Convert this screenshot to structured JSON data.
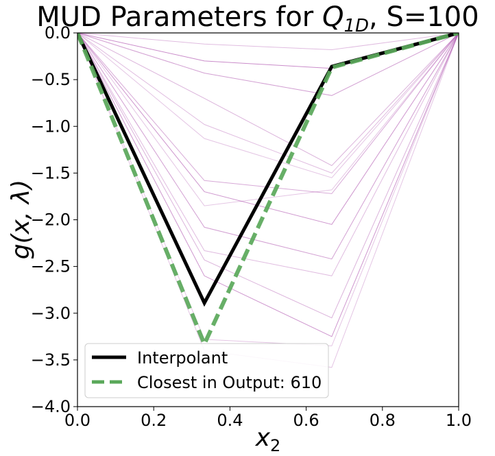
{
  "chart_data": {
    "type": "line",
    "title_prefix": "MUD Parameters for ",
    "title_math_base": "Q",
    "title_math_sub": "1D",
    "title_suffix": ", S=100",
    "xlabel_base": "x",
    "xlabel_sub": "2",
    "ylabel": "g(x, λ)",
    "xlim": [
      0.0,
      1.0
    ],
    "ylim": [
      -4.0,
      0.0
    ],
    "x_ticks": [
      0.0,
      0.2,
      0.4,
      0.6,
      0.8,
      1.0
    ],
    "x_tick_labels": [
      "0.0",
      "0.2",
      "0.4",
      "0.6",
      "0.8",
      "1.0"
    ],
    "y_ticks": [
      0.0,
      -0.5,
      -1.0,
      -1.5,
      -2.0,
      -2.5,
      -3.0,
      -3.5,
      -4.0
    ],
    "y_tick_labels": [
      "0.0",
      "−0.5",
      "−1.0",
      "−1.5",
      "−2.0",
      "−2.5",
      "−3.0",
      "−3.5",
      "−4.0"
    ],
    "grid": false,
    "legend_position": "lower-left",
    "colors": {
      "samples": "#a640a6",
      "interpolant": "#000000",
      "closest": "#5aa85a"
    },
    "sample_x": [
      0.0,
      0.333,
      0.667,
      1.0
    ],
    "samples": [
      {
        "values": [
          0.0,
          -0.12,
          -0.18,
          0.0
        ],
        "opacity": 0.35
      },
      {
        "values": [
          0.0,
          -0.3,
          -0.38,
          0.0
        ],
        "opacity": 0.6
      },
      {
        "values": [
          0.0,
          -0.43,
          -0.67,
          0.0
        ],
        "opacity": 0.5
      },
      {
        "values": [
          0.0,
          -0.7,
          -1.42,
          0.0
        ],
        "opacity": 0.4
      },
      {
        "values": [
          0.0,
          -0.98,
          -1.5,
          0.0
        ],
        "opacity": 0.35
      },
      {
        "values": [
          0.0,
          -1.13,
          -1.55,
          0.0
        ],
        "opacity": 0.3
      },
      {
        "values": [
          0.0,
          -1.58,
          -1.72,
          0.0
        ],
        "opacity": 0.45
      },
      {
        "values": [
          0.0,
          -1.7,
          -2.05,
          0.0
        ],
        "opacity": 0.55
      },
      {
        "values": [
          0.0,
          -1.85,
          -1.68,
          0.0
        ],
        "opacity": 0.3
      },
      {
        "values": [
          0.0,
          -2.08,
          -2.42,
          0.0
        ],
        "opacity": 0.5
      },
      {
        "values": [
          0.0,
          -2.33,
          -2.6,
          0.0
        ],
        "opacity": 0.35
      },
      {
        "values": [
          0.0,
          -2.43,
          -3.05,
          0.0
        ],
        "opacity": 0.4
      },
      {
        "values": [
          0.0,
          -2.6,
          -3.25,
          0.0
        ],
        "opacity": 0.55
      },
      {
        "values": [
          0.0,
          -3.28,
          -3.35,
          0.0
        ],
        "opacity": 0.3
      },
      {
        "values": [
          0.0,
          -3.4,
          -3.58,
          0.0
        ],
        "opacity": 0.3
      }
    ],
    "series": [
      {
        "name": "Interpolant",
        "x": [
          0.0,
          0.333,
          0.667,
          1.0
        ],
        "values": [
          0.0,
          -2.89,
          -0.36,
          0.0
        ],
        "style": "solid"
      },
      {
        "name": "Closest in Output: 610",
        "x": [
          0.0,
          0.333,
          0.667,
          1.0
        ],
        "values": [
          0.0,
          -3.33,
          -0.37,
          0.0
        ],
        "style": "dashed"
      }
    ]
  }
}
